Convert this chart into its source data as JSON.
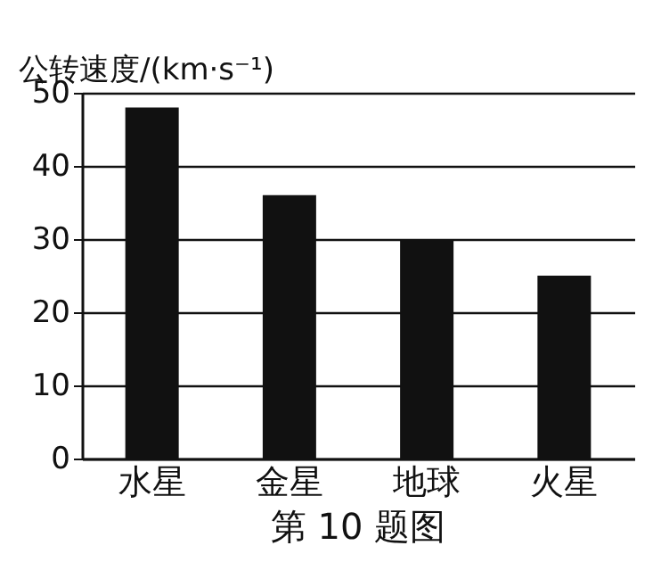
{
  "chart_data": {
    "type": "bar",
    "ylabel": "公转速度/(km·s⁻¹)",
    "categories": [
      "水星",
      "金星",
      "地球",
      "火星"
    ],
    "values": [
      48,
      36,
      30,
      25
    ],
    "color": "#111111",
    "ylim": [
      0,
      50
    ],
    "yticks": [
      0,
      10,
      20,
      30,
      40,
      50
    ],
    "grid": "y",
    "annotations": [
      "第 10 题图"
    ]
  }
}
